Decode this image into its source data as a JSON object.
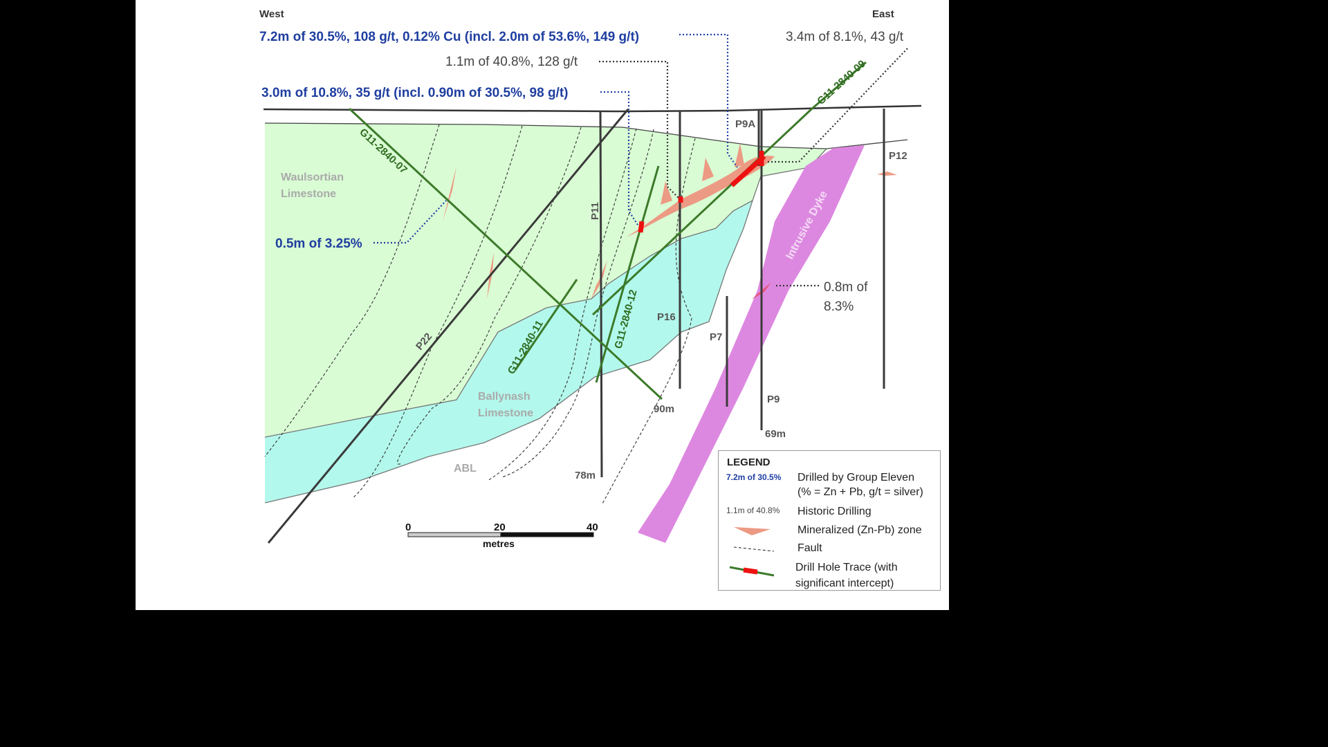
{
  "header": {
    "west": "West",
    "east": "East"
  },
  "callouts": {
    "gr_top": "7.2m of 30.5%, 108 g/t, 0.12% Cu (incl. 2.0m of 53.6%, 149 g/t)",
    "gr_mid": "3.0m of 10.8%, 35 g/t (incl. 0.90m of 30.5%, 98 g/t)",
    "gr_left": "0.5m of 3.25%",
    "hist_1": "1.1m of 40.8%, 128 g/t",
    "hist_2": "3.4m of 8.1%, 43 g/t",
    "hist_3a": "0.8m of",
    "hist_3b": "8.3%"
  },
  "units": {
    "waulsortian_a": "Waulsortian",
    "waulsortian_b": "Limestone",
    "ballynash_a": "Ballynash",
    "ballynash_b": "Limestone",
    "abl": "ABL",
    "dyke": "Intrusive Dyke"
  },
  "holes": {
    "p9a": "P9A",
    "p12": "P12",
    "p11": "P11",
    "p16": "P16",
    "p22": "P22",
    "p7": "P7",
    "p9": "P9",
    "d78": "78m",
    "d90": "90m",
    "d69": "69m",
    "g07": "G11-2840-07",
    "g09": "G11-2840-09",
    "g11": "G11-2840-11",
    "g12": "G11-2840-12"
  },
  "scale": {
    "t0": "0",
    "t20": "20",
    "t40": "40",
    "unit": "metres"
  },
  "legend": {
    "title": "LEGEND",
    "gr_sample": "7.2m of 30.5%",
    "gr_desc1": "Drilled by Group Eleven",
    "gr_desc2": "(% = Zn + Pb, g/t = silver)",
    "hist_sample": "1.1m of 40.8%",
    "hist_desc": "Historic Drilling",
    "min_desc": "Mineralized (Zn-Pb) zone",
    "fault_desc": "Fault",
    "trace_desc1": "Drill Hole Trace (with",
    "trace_desc2": "significant intercept)"
  },
  "colors": {
    "waulsortian": "#d9fcd4",
    "ballynash": "#b3f8ec",
    "dyke": "#dd88e0",
    "mineral": "#ec9a84",
    "drill_green": "#3c7a2a",
    "intercept_red": "#ee1111",
    "group_eleven_blue": "#1f3ea0",
    "tab_green": "#6aaa58"
  }
}
